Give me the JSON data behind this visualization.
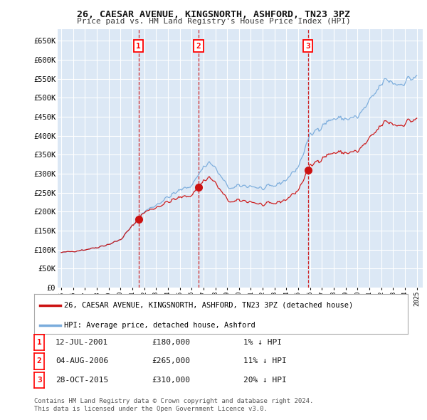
{
  "title": "26, CAESAR AVENUE, KINGSNORTH, ASHFORD, TN23 3PZ",
  "subtitle": "Price paid vs. HM Land Registry's House Price Index (HPI)",
  "background_color": "#ffffff",
  "plot_bg_color": "#dce8f5",
  "grid_color": "#ffffff",
  "ylim": [
    0,
    680000
  ],
  "yticks": [
    0,
    50000,
    100000,
    150000,
    200000,
    250000,
    300000,
    350000,
    400000,
    450000,
    500000,
    550000,
    600000,
    650000
  ],
  "ytick_labels": [
    "£0",
    "£50K",
    "£100K",
    "£150K",
    "£200K",
    "£250K",
    "£300K",
    "£350K",
    "£400K",
    "£450K",
    "£500K",
    "£550K",
    "£600K",
    "£650K"
  ],
  "hpi_color": "#7aacdc",
  "price_color": "#cc1111",
  "sale_marker_color": "#cc1111",
  "dashed_color": "#cc1111",
  "transactions": [
    {
      "date": 2001.53,
      "price": 180000,
      "label": "1"
    },
    {
      "date": 2006.58,
      "price": 265000,
      "label": "2"
    },
    {
      "date": 2015.82,
      "price": 310000,
      "label": "3"
    }
  ],
  "legend_label_red": "26, CAESAR AVENUE, KINGSNORTH, ASHFORD, TN23 3PZ (detached house)",
  "legend_label_blue": "HPI: Average price, detached house, Ashford",
  "table_rows": [
    {
      "num": "1",
      "date": "12-JUL-2001",
      "price": "£180,000",
      "hpi": "1% ↓ HPI"
    },
    {
      "num": "2",
      "date": "04-AUG-2006",
      "price": "£265,000",
      "hpi": "11% ↓ HPI"
    },
    {
      "num": "3",
      "date": "28-OCT-2015",
      "price": "£310,000",
      "hpi": "20% ↓ HPI"
    }
  ],
  "footer": "Contains HM Land Registry data © Crown copyright and database right 2024.\nThis data is licensed under the Open Government Licence v3.0."
}
